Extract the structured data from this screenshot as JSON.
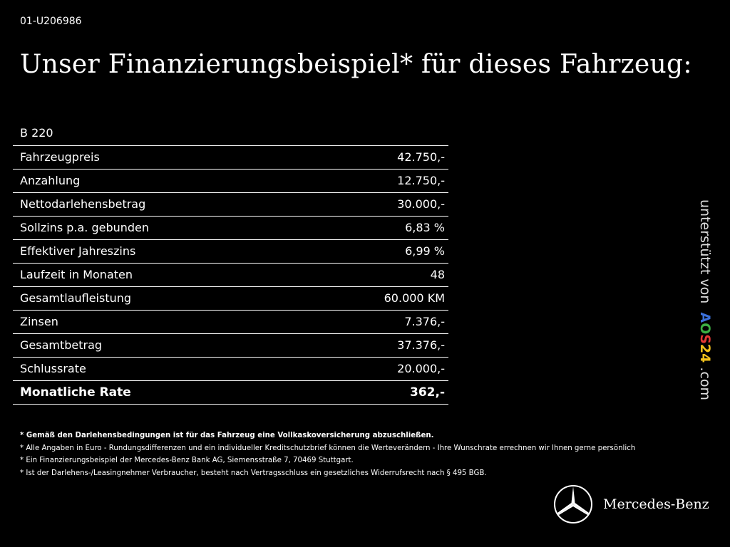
{
  "vehicle_id": "01-U206986",
  "title": "Unser Finanzierungsbeispiel* für dieses Fahrzeug:",
  "model": "B 220",
  "rows": [
    {
      "label": "Fahrzeugpreis",
      "value": "42.750,-"
    },
    {
      "label": "Anzahlung",
      "value": "12.750,-"
    },
    {
      "label": "Nettodarlehensbetrag",
      "value": "30.000,-"
    },
    {
      "label": "Sollzins p.a. gebunden",
      "value": "6,83 %"
    },
    {
      "label": "Effektiver Jahreszins",
      "value": "6,99 %"
    },
    {
      "label": "Laufzeit in Monaten",
      "value": "48"
    },
    {
      "label": "Gesamtlaufleistung",
      "value": "60.000 KM"
    },
    {
      "label": "Zinsen",
      "value": "7.376,-"
    },
    {
      "label": "Gesamtbetrag",
      "value": "37.376,-"
    },
    {
      "label": "Schlussrate",
      "value": "20.000,-"
    }
  ],
  "total": {
    "label": "Monatliche Rate",
    "value": "362,-"
  },
  "notes": [
    "* Gemäß den Darlehensbedingungen ist für das Fahrzeug eine Vollkaskoversicherung abzuschließen.",
    "* Alle Angaben in Euro - Rundungsdifferenzen und ein individueller Kreditschutzbrief können die Werteverändern - Ihre Wunschrate errechnen wir Ihnen gerne persönlich",
    "* Ein Finanzierungsbeispiel der Mercedes-Benz Bank AG, Siemensstraße 7, 70469 Stuttgart.",
    "* Ist der Darlehens-/Leasingnehmer Verbraucher, besteht nach Vertragsschluss ein gesetzliches Widerrufsrecht nach § 495 BGB."
  ],
  "sidebar": {
    "prefix": "unterstützt von",
    "logo_letters": [
      "A",
      "O",
      "S",
      "2",
      "4"
    ],
    "logo_colors": [
      "#3a6fd8",
      "#3cb043",
      "#e53935",
      "#f2c21b",
      "#f2c21b"
    ],
    "suffix": ".com"
  },
  "brand": {
    "name": "Mercedes-Benz",
    "icon": "mercedes-star-icon"
  }
}
